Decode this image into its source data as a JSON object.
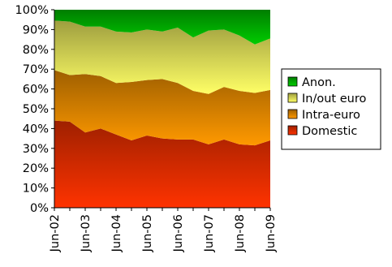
{
  "chart_data": {
    "type": "area",
    "stacked": true,
    "percent_stacked": true,
    "x": [
      "Jun-02",
      "Dec-02",
      "Jun-03",
      "Dec-03",
      "Jun-04",
      "Dec-04",
      "Jun-05",
      "Dec-05",
      "Jun-06",
      "Dec-06",
      "Jun-07",
      "Dec-07",
      "Jun-08",
      "Dec-08",
      "Jun-09"
    ],
    "x_tick_labels": [
      "Jun-02",
      "Jun-03",
      "Jun-04",
      "Jun-05",
      "Jun-06",
      "Jun-07",
      "Jun-08",
      "Jun-09"
    ],
    "y_tick_labels": [
      "0%",
      "10%",
      "20%",
      "30%",
      "40%",
      "50%",
      "60%",
      "70%",
      "80%",
      "90%",
      "100%"
    ],
    "ylim": [
      0,
      100
    ],
    "grid": false,
    "legend_position": "right",
    "series": [
      {
        "name": "Domestic",
        "color": "#ff3300",
        "values": [
          44,
          43.5,
          38,
          40,
          37,
          34,
          36.5,
          35,
          34.5,
          34.5,
          32,
          34.5,
          32,
          31.5,
          34
        ]
      },
      {
        "name": "Intra-euro",
        "color": "#ff9900",
        "values": [
          25.5,
          23.5,
          29.5,
          26.5,
          26,
          29.5,
          28,
          30,
          28.5,
          24.5,
          25.5,
          26.5,
          27,
          26.5,
          25.5
        ]
      },
      {
        "name": "In/out euro",
        "color": "#ffff66",
        "values": [
          25,
          27,
          24,
          25,
          26,
          25,
          25.5,
          24,
          28,
          27,
          32,
          29,
          28,
          24.5,
          26
        ]
      },
      {
        "name": "Anon.",
        "color": "#00cc00",
        "values": [
          5.5,
          6,
          8.5,
          8.5,
          11,
          11.5,
          10,
          11,
          9,
          14,
          10.5,
          10,
          13,
          17.5,
          14.5
        ]
      }
    ],
    "legend_order": [
      "Anon.",
      "In/out euro",
      "Intra-euro",
      "Domestic"
    ]
  }
}
